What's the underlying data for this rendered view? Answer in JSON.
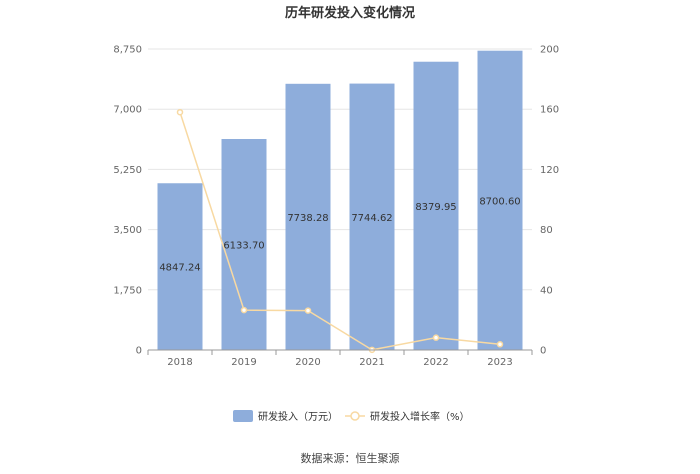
{
  "chart_data": {
    "type": "bar",
    "title": "历年研发投入变化情况",
    "categories": [
      "2018",
      "2019",
      "2020",
      "2021",
      "2022",
      "2023"
    ],
    "series": [
      {
        "name": "研发投入（万元）",
        "type": "bar",
        "axis": "left",
        "color": "#8eaddb",
        "values": [
          4847.24,
          6133.7,
          7738.28,
          7744.62,
          8379.95,
          8700.6
        ],
        "labels": [
          "4847.24",
          "6133.70",
          "7738.28",
          "7744.62",
          "8379.95",
          "8700.60"
        ]
      },
      {
        "name": "研发投入增长率（%）",
        "type": "line",
        "axis": "right",
        "color": "#f8d9a2",
        "values": [
          158,
          26.5,
          26.2,
          0.1,
          8.2,
          3.8
        ]
      }
    ],
    "y_left": {
      "min": 0,
      "max": 8750,
      "ticks": [
        "0",
        "1,750",
        "3,500",
        "5,250",
        "7,000",
        "8,750"
      ],
      "tick_values": [
        0,
        1750,
        3500,
        5250,
        7000,
        8750
      ]
    },
    "y_right": {
      "min": 0,
      "max": 200,
      "ticks": [
        "0",
        "40",
        "80",
        "120",
        "160",
        "200"
      ],
      "tick_values": [
        0,
        40,
        80,
        120,
        160,
        200
      ]
    },
    "grid": true,
    "legend_position": "bottom"
  },
  "source_text": "数据来源：恒生聚源"
}
